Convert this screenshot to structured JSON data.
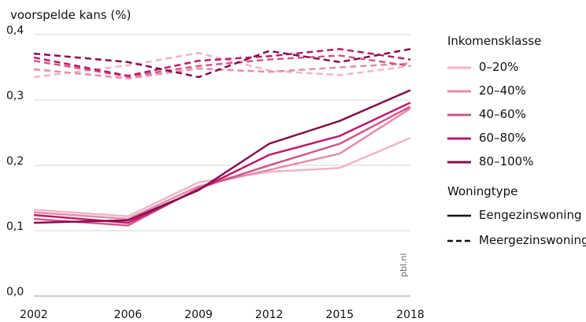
{
  "chart_data": {
    "type": "line",
    "ylabel": "voorspelde kans (%)",
    "source": "pbl.nl",
    "x": [
      2002,
      2006,
      2009,
      2012,
      2015,
      2018
    ],
    "xticks": [
      "2002",
      "2006",
      "2009",
      "2012",
      "2015",
      "2018"
    ],
    "yticks": [
      "0,0",
      "0,1",
      "0,2",
      "0,3",
      "0,4"
    ],
    "ylim": [
      0,
      0.4
    ],
    "grid": "horizontal",
    "legend_position": "right",
    "legend": {
      "income_title": "Inkomensklasse",
      "income_classes": [
        {
          "label": "0–20%",
          "color": "#f2b3c8"
        },
        {
          "label": "20–40%",
          "color": "#e38cab"
        },
        {
          "label": "40–60%",
          "color": "#d1568a"
        },
        {
          "label": "60–80%",
          "color": "#c0176c"
        },
        {
          "label": "80–100%",
          "color": "#85114f"
        }
      ],
      "type_title": "Woningtype",
      "types": [
        {
          "label": "Eengezinswoning",
          "dash": "solid"
        },
        {
          "label": "Meergezinswoning",
          "dash": "dashed"
        }
      ]
    },
    "series": [
      {
        "income": "0–20%",
        "type": "Eengezinswoning",
        "color": "#f2b3c8",
        "values": [
          0.132,
          0.122,
          0.174,
          0.19,
          0.196,
          0.242
        ]
      },
      {
        "income": "20–40%",
        "type": "Eengezinswoning",
        "color": "#e38cab",
        "values": [
          0.128,
          0.118,
          0.168,
          0.193,
          0.218,
          0.287
        ]
      },
      {
        "income": "40–60%",
        "type": "Eengezinswoning",
        "color": "#d1568a",
        "values": [
          0.118,
          0.108,
          0.165,
          0.2,
          0.233,
          0.29
        ]
      },
      {
        "income": "60–80%",
        "type": "Eengezinswoning",
        "color": "#c0176c",
        "values": [
          0.124,
          0.112,
          0.163,
          0.216,
          0.245,
          0.296
        ]
      },
      {
        "income": "80–100%",
        "type": "Eengezinswoning",
        "color": "#85114f",
        "values": [
          0.112,
          0.116,
          0.162,
          0.233,
          0.268,
          0.315
        ]
      },
      {
        "income": "0–20%",
        "type": "Meergezinswoning",
        "color": "#f2b3c8",
        "values": [
          0.335,
          0.353,
          0.372,
          0.345,
          0.338,
          0.352
        ]
      },
      {
        "income": "20–40%",
        "type": "Meergezinswoning",
        "color": "#e38cab",
        "values": [
          0.347,
          0.333,
          0.348,
          0.343,
          0.35,
          0.356
        ]
      },
      {
        "income": "40–60%",
        "type": "Meergezinswoning",
        "color": "#d1568a",
        "values": [
          0.36,
          0.336,
          0.352,
          0.362,
          0.368,
          0.352
        ]
      },
      {
        "income": "60–80%",
        "type": "Meergezinswoning",
        "color": "#c0176c",
        "values": [
          0.365,
          0.337,
          0.36,
          0.367,
          0.378,
          0.362
        ]
      },
      {
        "income": "80–100%",
        "type": "Meergezinswoning",
        "color": "#85114f",
        "values": [
          0.371,
          0.358,
          0.335,
          0.375,
          0.358,
          0.378
        ]
      }
    ]
  }
}
